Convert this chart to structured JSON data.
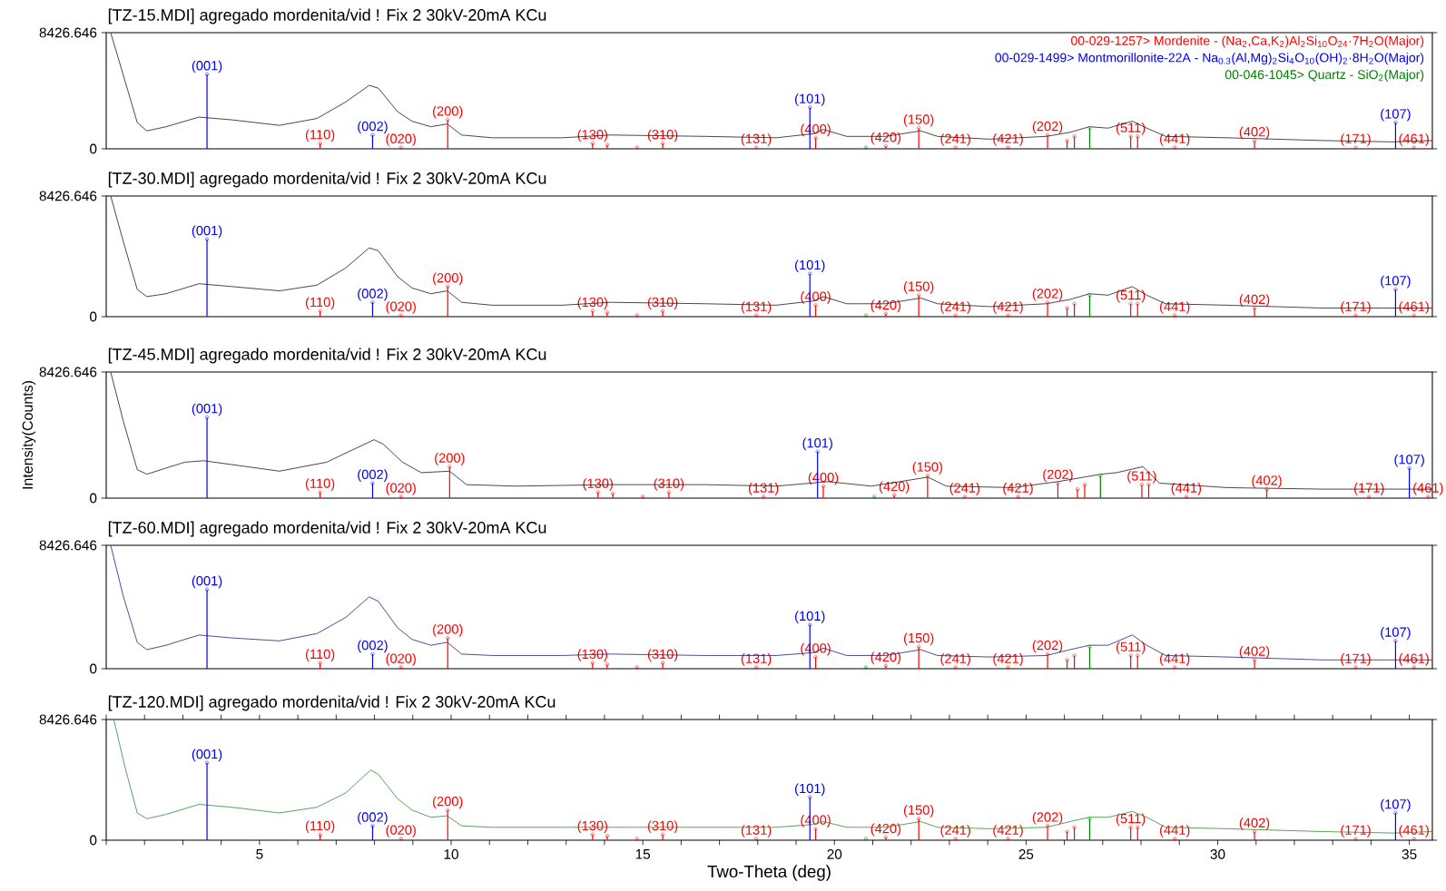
{
  "chart_data": [
    {
      "type": "line",
      "title": "[TZ-15.MDI] agregado mordenita/vid ! Fix 2 30kV-20mA KCu",
      "xlim": [
        1,
        35.6
      ],
      "ylim": [
        0,
        8426.646
      ],
      "yticks": [
        0,
        8426.646
      ],
      "tick_labels": "y",
      "series": [
        {
          "color": "#1a1a1a",
          "x": [
            1.12,
            1.44,
            1.81,
            2.06,
            2.56,
            3.42,
            4.28,
            5.52,
            6.5,
            7.25,
            7.86,
            8.1,
            8.6,
            8.98,
            9.47,
            9.9,
            10.27,
            11.07,
            12.9,
            14.16,
            16.62,
            18.48,
            19.47,
            19.71,
            20.32,
            21.33,
            22.25,
            22.69,
            24.05,
            25.53,
            26.15,
            26.65,
            27.14,
            27.77,
            28.15,
            28.64,
            30.25,
            32.73,
            34.58,
            35.6
          ],
          "values": [
            8400,
            5400,
            1900,
            1300,
            1600,
            2300,
            2100,
            1700,
            2200,
            3400,
            4600,
            4400,
            2700,
            2000,
            1600,
            1800,
            1000,
            800,
            800,
            1000,
            900,
            800,
            1100,
            1400,
            900,
            900,
            1300,
            900,
            700,
            900,
            1200,
            1600,
            1500,
            2000,
            1500,
            900,
            800,
            600,
            500,
            600
          ]
        },
        {
          "type": "lollipop",
          "name": "00-029-1257> Mordenite - (Na$_{2}$,Ca,K$_{2}$)Al$_{2}$Si$_{10}$O$_{24}$·7H$_{2}$O(Major)",
          "color": "#ff0000",
          "x": [
            6.58,
            8.69,
            9.91,
            13.69,
            14.07,
            14.85,
            15.52,
            17.96,
            19.51,
            21.34,
            22.2,
            23.16,
            24.53,
            25.56,
            26.07,
            26.26,
            27.73,
            27.91,
            28.88,
            30.96,
            33.6,
            35.12
          ],
          "values": [
            400,
            100,
            2100,
            400,
            300,
            100,
            400,
            100,
            800,
            200,
            1500,
            100,
            100,
            1000,
            600,
            900,
            900,
            900,
            100,
            600,
            100,
            100
          ]
        },
        {
          "type": "lollipop",
          "name": "00-029-1499> Montmorillonite-22A - Na$_{0.3}$(Al,Mg)$_{2}$Si$_{4}$O$_{10}$(OH)$_{2}$·8H$_{2}$O(Major)",
          "color": "#0000ff",
          "x": [
            3.63,
            7.95,
            19.36,
            34.64
          ],
          "values": [
            5400,
            1000,
            3000,
            1900
          ]
        },
        {
          "type": "lollipop",
          "name": "00-046-1045> Quartz - SiO$_{2}$(Major)",
          "color": "#008000",
          "x": [
            20.82,
            26.66
          ],
          "values": [
            100,
            1500
          ]
        }
      ],
      "annotations": [
        {
          "text": "(001)",
          "x": 3.63,
          "y": 5400
        },
        {
          "text": "(110)",
          "x": 6.58,
          "y": 400
        },
        {
          "text": "(002)",
          "x": 7.95,
          "y": 1000
        },
        {
          "text": "(020)",
          "x": 8.69,
          "y": 100
        },
        {
          "text": "(200)",
          "x": 9.91,
          "y": 2100
        },
        {
          "text": "(130)",
          "x": 13.69,
          "y": 400
        },
        {
          "text": "(310)",
          "x": 15.52,
          "y": 400
        },
        {
          "text": "(131)",
          "x": 17.96,
          "y": 100
        },
        {
          "text": "(101)",
          "x": 19.36,
          "y": 3000
        },
        {
          "text": "(400)",
          "x": 19.51,
          "y": 800
        },
        {
          "text": "(420)",
          "x": 21.34,
          "y": 200
        },
        {
          "text": "(150)",
          "x": 22.2,
          "y": 1500
        },
        {
          "text": "(241)",
          "x": 23.16,
          "y": 100
        },
        {
          "text": "(421)",
          "x": 24.53,
          "y": 100
        },
        {
          "text": "(202)",
          "x": 25.56,
          "y": 1000
        },
        {
          "text": "(511)",
          "x": 27.73,
          "y": 900
        },
        {
          "text": "(441)",
          "x": 28.88,
          "y": 100
        },
        {
          "text": "(402)",
          "x": 30.96,
          "y": 600
        },
        {
          "text": "(171)",
          "x": 33.6,
          "y": 100
        },
        {
          "text": "(107)",
          "x": 34.64,
          "y": 1900
        },
        {
          "text": "(461)",
          "x": 35.12,
          "y": 100
        }
      ]
    },
    {
      "type": "line",
      "title": "[TZ-30.MDI] agregado mordenita/vid ! Fix 2 30kV-20mA KCu",
      "xlim": [
        1,
        35.6
      ],
      "ylim": [
        0,
        8426.646
      ],
      "yticks": [
        0,
        8426.646
      ],
      "tick_labels": "y",
      "series": [
        {
          "color": "#1a1a1a",
          "x": [
            1.12,
            1.44,
            1.81,
            2.06,
            2.56,
            3.42,
            4.28,
            5.52,
            6.5,
            7.25,
            7.86,
            8.1,
            8.6,
            8.98,
            9.47,
            9.9,
            10.27,
            11.07,
            12.9,
            14.16,
            16.62,
            18.48,
            19.47,
            19.71,
            20.32,
            21.33,
            22.25,
            22.69,
            24.05,
            25.53,
            26.15,
            26.65,
            27.14,
            27.77,
            28.15,
            28.64,
            30.25,
            32.73,
            34.58,
            35.6
          ],
          "values": [
            8400,
            5300,
            1900,
            1400,
            1600,
            2300,
            2100,
            1800,
            2200,
            3400,
            4800,
            4600,
            2800,
            2000,
            1600,
            1800,
            1000,
            800,
            800,
            1000,
            900,
            800,
            1100,
            1400,
            900,
            900,
            1300,
            900,
            700,
            900,
            1200,
            1600,
            1500,
            2100,
            1500,
            900,
            800,
            600,
            600,
            600
          ]
        },
        {
          "type": "lollipop",
          "color": "#ff0000",
          "x": [
            6.58,
            8.69,
            9.91,
            13.69,
            14.07,
            14.85,
            15.52,
            17.96,
            19.51,
            21.34,
            22.2,
            23.16,
            24.53,
            25.56,
            26.07,
            26.26,
            27.73,
            27.91,
            28.88,
            30.96,
            33.6,
            35.12
          ],
          "values": [
            400,
            100,
            2100,
            400,
            300,
            100,
            400,
            100,
            800,
            200,
            1500,
            100,
            100,
            1000,
            600,
            900,
            900,
            900,
            100,
            600,
            100,
            100
          ]
        },
        {
          "type": "lollipop",
          "color": "#0000ff",
          "x": [
            3.63,
            7.95,
            19.36,
            34.64
          ],
          "values": [
            5400,
            1000,
            3000,
            1900
          ]
        },
        {
          "type": "lollipop",
          "color": "#008000",
          "x": [
            20.82,
            26.66
          ],
          "values": [
            100,
            1500
          ]
        }
      ],
      "annotations": [
        {
          "text": "(001)",
          "x": 3.63,
          "y": 5400
        },
        {
          "text": "(110)",
          "x": 6.58,
          "y": 400
        },
        {
          "text": "(002)",
          "x": 7.95,
          "y": 1000
        },
        {
          "text": "(020)",
          "x": 8.69,
          "y": 100
        },
        {
          "text": "(200)",
          "x": 9.91,
          "y": 2100
        },
        {
          "text": "(130)",
          "x": 13.69,
          "y": 400
        },
        {
          "text": "(310)",
          "x": 15.52,
          "y": 400
        },
        {
          "text": "(131)",
          "x": 17.96,
          "y": 100
        },
        {
          "text": "(101)",
          "x": 19.36,
          "y": 3000
        },
        {
          "text": "(400)",
          "x": 19.51,
          "y": 800
        },
        {
          "text": "(420)",
          "x": 21.34,
          "y": 200
        },
        {
          "text": "(150)",
          "x": 22.2,
          "y": 1500
        },
        {
          "text": "(241)",
          "x": 23.16,
          "y": 100
        },
        {
          "text": "(421)",
          "x": 24.53,
          "y": 100
        },
        {
          "text": "(202)",
          "x": 25.56,
          "y": 1000
        },
        {
          "text": "(511)",
          "x": 27.73,
          "y": 900
        },
        {
          "text": "(441)",
          "x": 28.88,
          "y": 100
        },
        {
          "text": "(402)",
          "x": 30.96,
          "y": 600
        },
        {
          "text": "(171)",
          "x": 33.6,
          "y": 100
        },
        {
          "text": "(107)",
          "x": 34.64,
          "y": 1900
        },
        {
          "text": "(461)",
          "x": 35.12,
          "y": 100
        }
      ]
    },
    {
      "type": "line",
      "title": "[TZ-45.MDI] agregado mordenita/vid ! Fix 2 30kV-20mA KCu",
      "ylabel": "Intensity(Counts)",
      "xlim": [
        1,
        35.6
      ],
      "ylim": [
        0,
        8426.646
      ],
      "yticks": [
        0,
        8426.646
      ],
      "tick_labels": "y",
      "series": [
        {
          "color": "#1a1a1a",
          "x": [
            1.12,
            1.44,
            1.81,
            2.06,
            3.05,
            3.54,
            5.52,
            6.75,
            7.49,
            7.99,
            8.23,
            8.73,
            9.22,
            9.96,
            10.4,
            11.7,
            14.16,
            16.62,
            18.48,
            19.84,
            20.96,
            22.44,
            22.92,
            24.65,
            25.83,
            26.96,
            27.36,
            28.05,
            28.48,
            30.25,
            32.73,
            35.6
          ],
          "values": [
            8400,
            5200,
            1900,
            1600,
            2400,
            2500,
            1800,
            2400,
            3300,
            3900,
            3600,
            2400,
            1700,
            1800,
            900,
            800,
            900,
            900,
            800,
            1100,
            800,
            1400,
            800,
            700,
            1100,
            1600,
            1700,
            2100,
            1000,
            700,
            600,
            600
          ]
        },
        {
          "type": "lollipop",
          "color": "#ff0000",
          "x": [
            6.58,
            8.69,
            9.96,
            13.83,
            14.22,
            15.0,
            15.68,
            18.15,
            19.71,
            21.56,
            22.43,
            23.4,
            24.79,
            25.83,
            26.34,
            26.53,
            28.02,
            28.2,
            29.18,
            31.28,
            33.95,
            35.49
          ],
          "values": [
            400,
            100,
            2100,
            400,
            300,
            100,
            400,
            100,
            800,
            200,
            1500,
            100,
            100,
            1000,
            600,
            900,
            900,
            900,
            100,
            600,
            100,
            100
          ]
        },
        {
          "type": "lollipop",
          "color": "#0000ff",
          "x": [
            3.63,
            7.95,
            19.56,
            35.0
          ],
          "values": [
            5400,
            1000,
            3100,
            2000
          ]
        },
        {
          "type": "lollipop",
          "color": "#008000",
          "x": [
            21.04,
            26.94
          ],
          "values": [
            100,
            1500
          ]
        }
      ],
      "annotations": [
        {
          "text": "(001)",
          "x": 3.63,
          "y": 5400
        },
        {
          "text": "(110)",
          "x": 6.58,
          "y": 400
        },
        {
          "text": "(002)",
          "x": 7.95,
          "y": 1000
        },
        {
          "text": "(020)",
          "x": 8.69,
          "y": 100
        },
        {
          "text": "(200)",
          "x": 9.96,
          "y": 2100
        },
        {
          "text": "(130)",
          "x": 13.83,
          "y": 400
        },
        {
          "text": "(310)",
          "x": 15.68,
          "y": 400
        },
        {
          "text": "(131)",
          "x": 18.15,
          "y": 100
        },
        {
          "text": "(101)",
          "x": 19.56,
          "y": 3100
        },
        {
          "text": "(400)",
          "x": 19.71,
          "y": 800
        },
        {
          "text": "(420)",
          "x": 21.56,
          "y": 200
        },
        {
          "text": "(150)",
          "x": 22.43,
          "y": 1500
        },
        {
          "text": "(241)",
          "x": 23.4,
          "y": 100
        },
        {
          "text": "(421)",
          "x": 24.79,
          "y": 100
        },
        {
          "text": "(202)",
          "x": 25.83,
          "y": 1000
        },
        {
          "text": "(511)",
          "x": 28.02,
          "y": 900
        },
        {
          "text": "(441)",
          "x": 29.18,
          "y": 100
        },
        {
          "text": "(402)",
          "x": 31.28,
          "y": 600
        },
        {
          "text": "(171)",
          "x": 33.95,
          "y": 100
        },
        {
          "text": "(107)",
          "x": 35.0,
          "y": 2000
        },
        {
          "text": "(461)",
          "x": 35.49,
          "y": 100
        }
      ]
    },
    {
      "type": "line",
      "title": "[TZ-60.MDI] agregado mordenita/vid ! Fix 2 30kV-20mA KCu",
      "xlim": [
        1,
        35.6
      ],
      "ylim": [
        0,
        8426.646
      ],
      "yticks": [
        0,
        8426.646
      ],
      "tick_labels": "y",
      "series": [
        {
          "color": "#20207a",
          "x": [
            1.12,
            1.44,
            1.81,
            2.06,
            2.56,
            3.42,
            4.28,
            5.52,
            6.5,
            7.25,
            7.86,
            8.1,
            8.6,
            8.98,
            9.47,
            9.9,
            10.27,
            11.07,
            12.9,
            14.16,
            16.62,
            18.48,
            19.47,
            19.71,
            20.32,
            21.33,
            22.25,
            22.69,
            24.05,
            25.53,
            26.15,
            26.65,
            27.14,
            27.77,
            28.15,
            28.64,
            30.25,
            32.73,
            34.58,
            35.6
          ],
          "values": [
            8400,
            5000,
            1800,
            1300,
            1600,
            2300,
            2100,
            1900,
            2400,
            3500,
            4900,
            4600,
            2800,
            2000,
            1600,
            1800,
            1000,
            900,
            900,
            1000,
            900,
            900,
            1100,
            1400,
            900,
            900,
            1300,
            900,
            800,
            900,
            1300,
            1600,
            1600,
            2300,
            1600,
            900,
            800,
            600,
            600,
            600
          ]
        },
        {
          "type": "lollipop",
          "color": "#ff0000",
          "x": [
            6.58,
            8.69,
            9.91,
            13.69,
            14.07,
            14.85,
            15.52,
            17.96,
            19.51,
            21.34,
            22.2,
            23.16,
            24.53,
            25.56,
            26.07,
            26.26,
            27.73,
            27.91,
            28.88,
            30.96,
            33.6,
            35.12
          ],
          "values": [
            400,
            100,
            2100,
            400,
            300,
            100,
            400,
            100,
            800,
            200,
            1500,
            100,
            100,
            1000,
            600,
            900,
            900,
            900,
            100,
            600,
            100,
            100
          ]
        },
        {
          "type": "lollipop",
          "color": "#0000ff",
          "x": [
            3.63,
            7.95,
            19.36,
            34.64
          ],
          "values": [
            5400,
            1000,
            3000,
            1900
          ]
        },
        {
          "type": "lollipop",
          "color": "#008000",
          "x": [
            20.82,
            26.66
          ],
          "values": [
            100,
            1500
          ]
        }
      ],
      "annotations": [
        {
          "text": "(001)",
          "x": 3.63,
          "y": 5400
        },
        {
          "text": "(110)",
          "x": 6.58,
          "y": 400
        },
        {
          "text": "(002)",
          "x": 7.95,
          "y": 1000
        },
        {
          "text": "(020)",
          "x": 8.69,
          "y": 100
        },
        {
          "text": "(200)",
          "x": 9.91,
          "y": 2100
        },
        {
          "text": "(130)",
          "x": 13.69,
          "y": 400
        },
        {
          "text": "(310)",
          "x": 15.52,
          "y": 400
        },
        {
          "text": "(131)",
          "x": 17.96,
          "y": 100
        },
        {
          "text": "(101)",
          "x": 19.36,
          "y": 3000
        },
        {
          "text": "(400)",
          "x": 19.51,
          "y": 800
        },
        {
          "text": "(420)",
          "x": 21.34,
          "y": 200
        },
        {
          "text": "(150)",
          "x": 22.2,
          "y": 1500
        },
        {
          "text": "(241)",
          "x": 23.16,
          "y": 100
        },
        {
          "text": "(421)",
          "x": 24.53,
          "y": 100
        },
        {
          "text": "(202)",
          "x": 25.56,
          "y": 1000
        },
        {
          "text": "(511)",
          "x": 27.73,
          "y": 900
        },
        {
          "text": "(441)",
          "x": 28.88,
          "y": 100
        },
        {
          "text": "(402)",
          "x": 30.96,
          "y": 600
        },
        {
          "text": "(171)",
          "x": 33.6,
          "y": 100
        },
        {
          "text": "(107)",
          "x": 34.64,
          "y": 1900
        },
        {
          "text": "(461)",
          "x": 35.12,
          "y": 100
        }
      ]
    },
    {
      "type": "line",
      "title": "[TZ-120.MDI] agregado mordenita/vid ! Fix 2 30kV-20mA KCu",
      "xlabel": "Two-Theta (deg)",
      "xlim": [
        1,
        35.6
      ],
      "ylim": [
        0,
        8426.646
      ],
      "yticks": [
        0,
        8426.646
      ],
      "xticks": [
        {
          "value": 1,
          "label": null
        },
        {
          "value": 2,
          "label": null
        },
        {
          "value": 3,
          "label": null
        },
        {
          "value": 4,
          "label": null
        },
        5,
        {
          "value": 6,
          "label": null
        },
        {
          "value": 7,
          "label": null
        },
        {
          "value": 8,
          "label": null
        },
        {
          "value": 9,
          "label": null
        },
        10,
        {
          "value": 11,
          "label": null
        },
        {
          "value": 12,
          "label": null
        },
        {
          "value": 13,
          "label": null
        },
        {
          "value": 14,
          "label": null
        },
        15,
        {
          "value": 16,
          "label": null
        },
        {
          "value": 17,
          "label": null
        },
        {
          "value": 18,
          "label": null
        },
        {
          "value": 19,
          "label": null
        },
        20,
        {
          "value": 21,
          "label": null
        },
        {
          "value": 22,
          "label": null
        },
        {
          "value": 23,
          "label": null
        },
        {
          "value": 24,
          "label": null
        },
        25,
        {
          "value": 26,
          "label": null
        },
        {
          "value": 27,
          "label": null
        },
        {
          "value": 28,
          "label": null
        },
        {
          "value": 29,
          "label": null
        },
        30,
        {
          "value": 31,
          "label": null
        },
        {
          "value": 32,
          "label": null
        },
        {
          "value": 33,
          "label": null
        },
        {
          "value": 34,
          "label": null
        },
        35
      ],
      "series": [
        {
          "color": "#2e8b2e",
          "x": [
            1.2,
            1.5,
            1.81,
            2.06,
            2.56,
            3.42,
            4.28,
            5.52,
            6.5,
            7.25,
            7.9,
            8.1,
            8.6,
            8.98,
            9.47,
            9.9,
            10.27,
            11.07,
            12.9,
            14.16,
            16.62,
            18.48,
            19.47,
            19.71,
            20.32,
            21.33,
            22.25,
            22.69,
            24.05,
            25.53,
            26.15,
            26.65,
            27.14,
            27.77,
            28.15,
            28.64,
            30.25,
            32.73,
            34.58,
            35.6
          ],
          "values": [
            8400,
            5000,
            1900,
            1500,
            1800,
            2500,
            2300,
            1900,
            2300,
            3300,
            4900,
            4600,
            2900,
            2100,
            1600,
            1700,
            1000,
            900,
            900,
            900,
            900,
            900,
            1100,
            1300,
            900,
            900,
            1300,
            900,
            800,
            900,
            1300,
            1600,
            1600,
            2000,
            1600,
            900,
            800,
            600,
            500,
            600
          ]
        },
        {
          "type": "lollipop",
          "color": "#ff0000",
          "x": [
            6.58,
            8.69,
            9.91,
            13.69,
            14.07,
            14.85,
            15.52,
            17.96,
            19.51,
            21.34,
            22.2,
            23.16,
            24.53,
            25.56,
            26.07,
            26.26,
            27.73,
            27.91,
            28.88,
            30.96,
            33.6,
            35.12
          ],
          "values": [
            400,
            100,
            2100,
            400,
            300,
            100,
            400,
            100,
            800,
            200,
            1500,
            100,
            100,
            1000,
            600,
            900,
            900,
            900,
            100,
            600,
            100,
            100
          ]
        },
        {
          "type": "lollipop",
          "color": "#0000ff",
          "x": [
            3.63,
            7.95,
            19.36,
            34.64
          ],
          "values": [
            5400,
            1000,
            3000,
            1900
          ]
        },
        {
          "type": "lollipop",
          "color": "#008000",
          "x": [
            20.82,
            26.66
          ],
          "values": [
            100,
            1500
          ]
        }
      ],
      "annotations": [
        {
          "text": "(001)",
          "x": 3.63,
          "y": 5400
        },
        {
          "text": "(110)",
          "x": 6.58,
          "y": 400
        },
        {
          "text": "(002)",
          "x": 7.95,
          "y": 1000
        },
        {
          "text": "(020)",
          "x": 8.69,
          "y": 100
        },
        {
          "text": "(200)",
          "x": 9.91,
          "y": 2100
        },
        {
          "text": "(130)",
          "x": 13.69,
          "y": 400
        },
        {
          "text": "(310)",
          "x": 15.52,
          "y": 400
        },
        {
          "text": "(131)",
          "x": 17.96,
          "y": 100
        },
        {
          "text": "(101)",
          "x": 19.36,
          "y": 3000
        },
        {
          "text": "(400)",
          "x": 19.51,
          "y": 800
        },
        {
          "text": "(420)",
          "x": 21.34,
          "y": 200
        },
        {
          "text": "(150)",
          "x": 22.2,
          "y": 1500
        },
        {
          "text": "(241)",
          "x": 23.16,
          "y": 100
        },
        {
          "text": "(421)",
          "x": 24.53,
          "y": 100
        },
        {
          "text": "(202)",
          "x": 25.56,
          "y": 1000
        },
        {
          "text": "(511)",
          "x": 27.73,
          "y": 900
        },
        {
          "text": "(441)",
          "x": 28.88,
          "y": 100
        },
        {
          "text": "(402)",
          "x": 30.96,
          "y": 600
        },
        {
          "text": "(171)",
          "x": 33.6,
          "y": 100
        },
        {
          "text": "(107)",
          "x": 34.64,
          "y": 1900
        },
        {
          "text": "(461)",
          "x": 35.12,
          "y": 100
        }
      ]
    }
  ]
}
